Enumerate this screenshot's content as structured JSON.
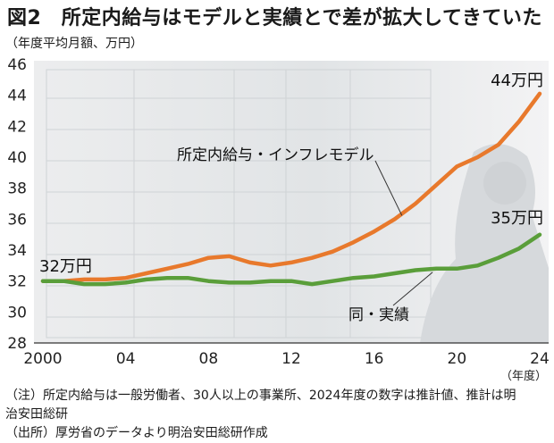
{
  "header": {
    "title": "図2　所定内給与はモデルと実績とで差が拡大してきていた",
    "unit": "（年度平均月額、万円）"
  },
  "notes": {
    "note_line1": "（注）所定内給与は一般労働者、30人以上の事業所、2024年度の数字は推計値、推計は明",
    "note_line2": "治安田総研",
    "source": "（出所）厚労省のデータより明治安田総研作成"
  },
  "chart_data": {
    "type": "line",
    "title": "所定内給与はモデルと実績とで差が拡大してきていた",
    "xlabel": "（年度）",
    "ylabel": "年度平均月額、万円",
    "xlim": [
      2000,
      2024
    ],
    "ylim": [
      28,
      46
    ],
    "x_ticks": [
      2000,
      2004,
      2008,
      2012,
      2016,
      2020,
      2024
    ],
    "x_tick_labels": [
      "2000",
      "04",
      "08",
      "12",
      "16",
      "20",
      "24"
    ],
    "y_ticks": [
      28,
      30,
      32,
      34,
      36,
      38,
      40,
      42,
      44,
      46
    ],
    "x": [
      2000,
      2001,
      2002,
      2003,
      2004,
      2005,
      2006,
      2007,
      2008,
      2009,
      2010,
      2011,
      2012,
      2013,
      2014,
      2015,
      2016,
      2017,
      2018,
      2019,
      2020,
      2021,
      2022,
      2023,
      2024
    ],
    "series": [
      {
        "name": "所定内給与・インフレモデル",
        "color": "#e8792c",
        "values": [
          32.0,
          32.0,
          32.1,
          32.1,
          32.2,
          32.5,
          32.8,
          33.1,
          33.5,
          33.6,
          33.2,
          33.0,
          33.2,
          33.5,
          33.9,
          34.5,
          35.2,
          36.0,
          37.0,
          38.2,
          39.4,
          40.0,
          40.8,
          42.3,
          44.1
        ],
        "end_label": "44万円",
        "line_label": "所定内給与・インフレモデル"
      },
      {
        "name": "同・実績",
        "color": "#5a9e3a",
        "values": [
          32.0,
          32.0,
          31.8,
          31.8,
          31.9,
          32.1,
          32.2,
          32.2,
          32.0,
          31.9,
          31.9,
          32.0,
          32.0,
          31.8,
          32.0,
          32.2,
          32.3,
          32.5,
          32.7,
          32.8,
          32.8,
          33.0,
          33.5,
          34.1,
          35.0
        ],
        "end_label": "35万円",
        "line_label": "同・実績"
      }
    ],
    "start_label": "32万円",
    "grid": false,
    "colors": {
      "background_photo": "#dfe2e4",
      "axis": "#333333"
    }
  }
}
